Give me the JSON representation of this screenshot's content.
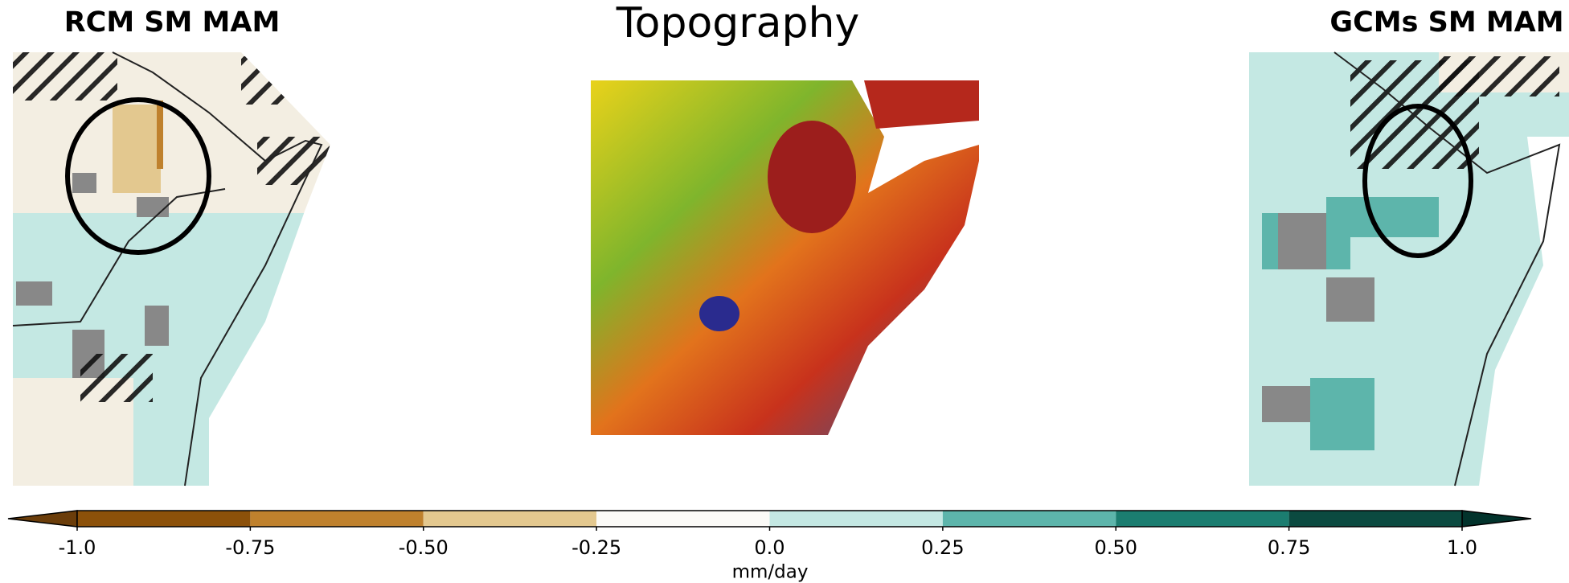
{
  "panels": [
    {
      "title": "RCM SM MAM"
    },
    {
      "title": "Topography"
    },
    {
      "title": "GCMs SM MAM"
    }
  ],
  "colorbar": {
    "label": "mm/day",
    "lim": [
      -1,
      1
    ],
    "ticks": [
      {
        "value": -1,
        "label": "-1.0"
      },
      {
        "value": -0.75,
        "label": "-0.75"
      },
      {
        "value": -0.5,
        "label": "-0.50"
      },
      {
        "value": -0.25,
        "label": "-0.25"
      },
      {
        "value": 0,
        "label": "0.0"
      },
      {
        "value": 0.25,
        "label": "0.25"
      },
      {
        "value": 0.5,
        "label": "0.50"
      },
      {
        "value": 0.75,
        "label": "0.75"
      },
      {
        "value": 1,
        "label": "1.0"
      }
    ],
    "colors": [
      "#8c510a",
      "#bf812d",
      "#e3c88f",
      "#fbfaf7",
      "#c4e8e3",
      "#5db5ab",
      "#1b7d70",
      "#0b4a40"
    ],
    "extend_colors": [
      "#6b3d0a",
      "#02332c"
    ]
  }
}
